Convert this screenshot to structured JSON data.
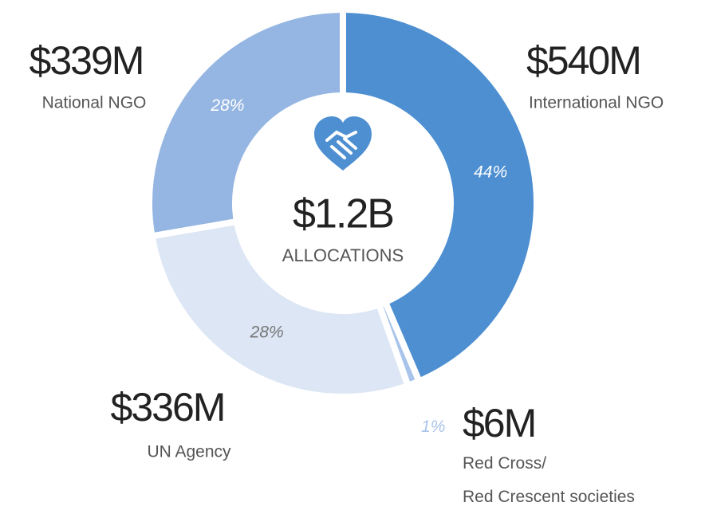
{
  "chart_data": {
    "type": "donut",
    "categories": [
      "International NGO",
      "Red Cross/\nRed Crescent societies",
      "UN Agency",
      "National NGO"
    ],
    "values": [
      44,
      1,
      28,
      28
    ],
    "value_labels": [
      "44%",
      "1%",
      "28%",
      "28%"
    ],
    "amount_labels": [
      "$540M",
      "$6M",
      "$336M",
      "$339M"
    ],
    "colors": [
      "#4d8fd1",
      "#a8c4ea",
      "#dce6f5",
      "#95b6e2"
    ],
    "center_value": "$1.2B",
    "center_label": "ALLOCATIONS"
  }
}
